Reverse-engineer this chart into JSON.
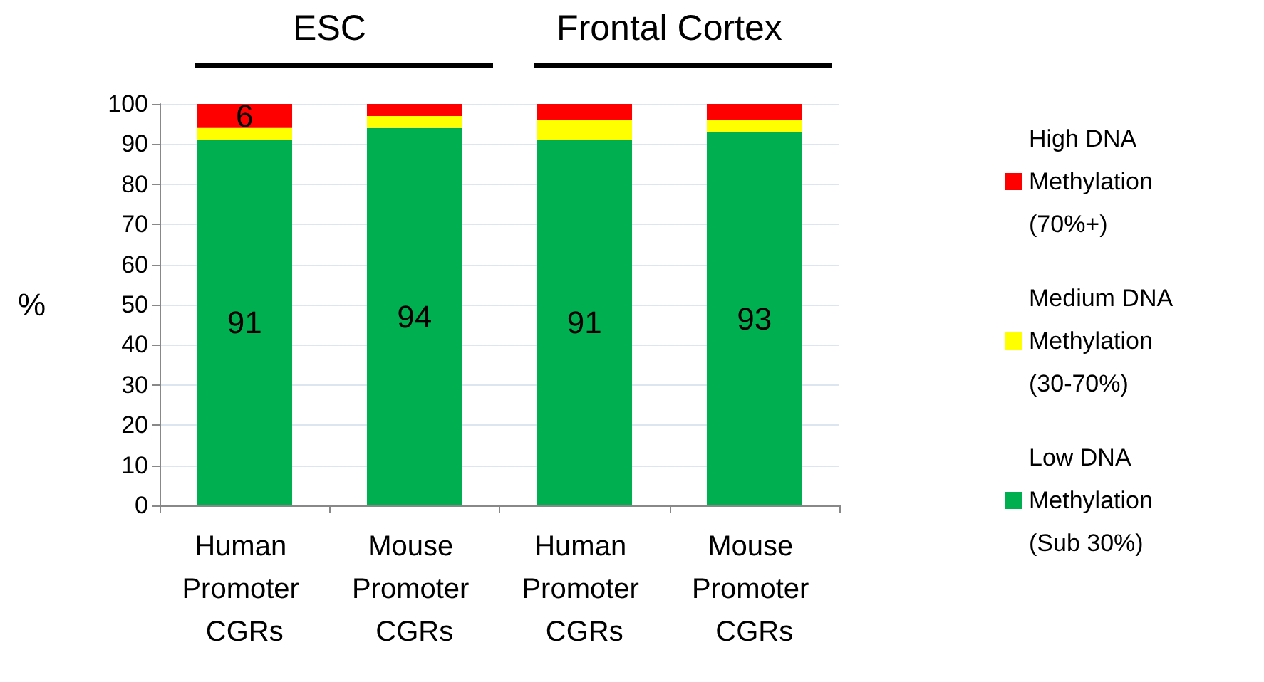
{
  "chart_data": {
    "type": "bar",
    "stacked": true,
    "categories": [
      "Human Promoter CGRs",
      "Mouse Promoter CGRs",
      "Human Promoter CGRs",
      "Mouse Promoter CGRs"
    ],
    "series": [
      {
        "name": "Low DNA Methylation (Sub 30%)",
        "color": "#00b050",
        "values": [
          91,
          94,
          91,
          93
        ],
        "value_labels": [
          "91",
          "94",
          "91",
          "93"
        ]
      },
      {
        "name": "Medium DNA Methylation (30-70%)",
        "color": "#ffff00",
        "values": [
          3,
          3,
          5,
          3
        ]
      },
      {
        "name": "High DNA Methylation (70%+)",
        "color": "#ff0000",
        "values": [
          6,
          3,
          4,
          4
        ],
        "value_labels": [
          "6",
          null,
          null,
          null
        ]
      }
    ],
    "ylabel": "%",
    "ylim": [
      0,
      100
    ],
    "yticks": [
      0,
      10,
      20,
      30,
      40,
      50,
      60,
      70,
      80,
      90,
      100
    ],
    "grid": "y",
    "legend": "right",
    "annotations": [
      "ESC",
      "Frontal Cortex"
    ]
  }
}
